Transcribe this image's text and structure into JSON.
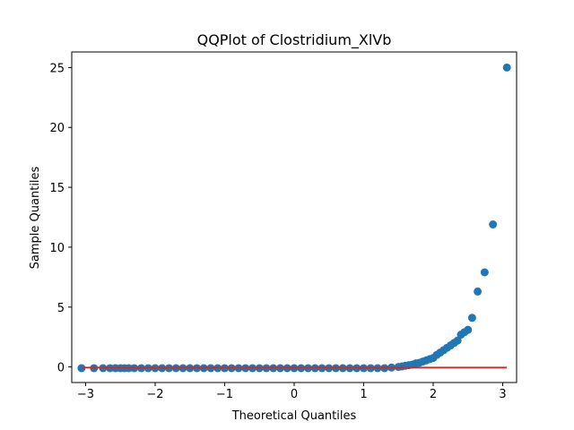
{
  "chart_data": {
    "type": "scatter",
    "title": "QQPlot of Clostridium_XlVb",
    "xlabel": "Theoretical Quantiles",
    "ylabel": "Sample Quantiles",
    "xlim": [
      -3.2,
      3.2
    ],
    "ylim": [
      -1.3,
      26.3
    ],
    "x_ticks": [
      -3,
      -2,
      -1,
      0,
      1,
      2,
      3
    ],
    "y_ticks": [
      0,
      5,
      10,
      15,
      20,
      25
    ],
    "grid": false,
    "colors": {
      "points": "#1f77b4",
      "reference_line": "#d62728"
    },
    "reference_line": {
      "x": [
        -3.06,
        3.06
      ],
      "y": [
        -0.05,
        -0.05
      ]
    },
    "points": {
      "x": [
        -3.06,
        -2.88,
        -2.75,
        -2.65,
        -2.57,
        -2.5,
        -2.44,
        -2.38,
        -2.3,
        -2.2,
        -2.1,
        -2.0,
        -1.9,
        -1.8,
        -1.7,
        -1.6,
        -1.5,
        -1.4,
        -1.3,
        -1.2,
        -1.1,
        -1.0,
        -0.9,
        -0.8,
        -0.7,
        -0.6,
        -0.5,
        -0.4,
        -0.3,
        -0.2,
        -0.1,
        0.0,
        0.1,
        0.2,
        0.3,
        0.4,
        0.5,
        0.6,
        0.7,
        0.8,
        0.9,
        1.0,
        1.1,
        1.2,
        1.3,
        1.4,
        1.5,
        1.55,
        1.6,
        1.65,
        1.7,
        1.75,
        1.8,
        1.85,
        1.9,
        1.95,
        2.0,
        2.05,
        2.1,
        2.15,
        2.2,
        2.25,
        2.3,
        2.35,
        2.4,
        2.45,
        2.5,
        2.56,
        2.64,
        2.74,
        2.86,
        3.06
      ],
      "y": [
        -0.1,
        -0.1,
        -0.1,
        -0.1,
        -0.1,
        -0.1,
        -0.1,
        -0.1,
        -0.1,
        -0.1,
        -0.1,
        -0.1,
        -0.1,
        -0.1,
        -0.1,
        -0.1,
        -0.1,
        -0.1,
        -0.1,
        -0.1,
        -0.1,
        -0.1,
        -0.1,
        -0.1,
        -0.1,
        -0.1,
        -0.1,
        -0.1,
        -0.1,
        -0.1,
        -0.1,
        -0.1,
        -0.1,
        -0.1,
        -0.1,
        -0.1,
        -0.1,
        -0.1,
        -0.1,
        -0.1,
        -0.1,
        -0.1,
        -0.1,
        -0.1,
        -0.1,
        -0.05,
        0.0,
        0.05,
        0.1,
        0.15,
        0.2,
        0.3,
        0.35,
        0.45,
        0.55,
        0.65,
        0.75,
        1.0,
        1.2,
        1.4,
        1.6,
        1.8,
        2.0,
        2.2,
        2.7,
        2.9,
        3.1,
        4.1,
        6.3,
        7.9,
        11.9,
        25.0
      ]
    }
  }
}
